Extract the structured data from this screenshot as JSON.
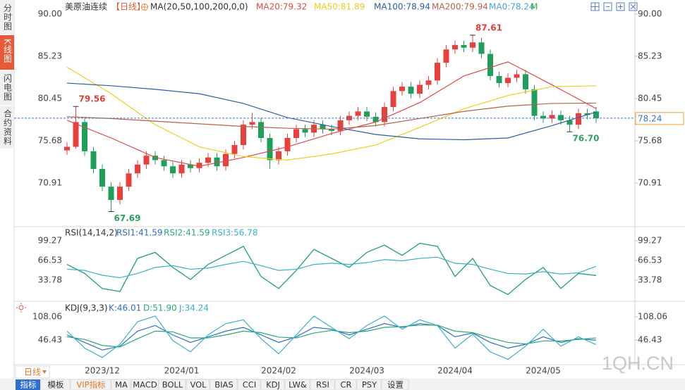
{
  "sidebar_tabs": [
    "分时图",
    "K线图",
    "闪电图",
    "合约资料"
  ],
  "period_button": "日线",
  "watermark": "1QH.CN",
  "toolbar": [
    "指标",
    "模板",
    "VIP指标",
    "MA",
    "MACD",
    "BOLL",
    "VOL",
    "BIAS",
    "CCI",
    "KDJ",
    "LW&",
    "RSI",
    "CR",
    "PSY",
    "设置"
  ],
  "chart_data": [
    {
      "type": "candlestick",
      "title": "美原油连续",
      "period": "【日线】",
      "indicator": "MA(20,50,100,200,0,0)",
      "categories": [
        null,
        null,
        null,
        null,
        "2023/12",
        null,
        null,
        null,
        null,
        null,
        null,
        null,
        null,
        "2024/01",
        null,
        null,
        null,
        null,
        null,
        null,
        null,
        null,
        null,
        null,
        "2024/02",
        null,
        null,
        null,
        null,
        null,
        null,
        null,
        null,
        null,
        "2024/03",
        null,
        null,
        null,
        null,
        null,
        null,
        null,
        null,
        null,
        "2024/04",
        null,
        null,
        null,
        null,
        null,
        null,
        null,
        null,
        null,
        "2024/05",
        null,
        null,
        null,
        null,
        null,
        null
      ],
      "open": [
        74.6,
        75.0,
        77.8,
        74.5,
        72.5,
        70.5,
        69.0,
        70.5,
        72.0,
        73.0,
        74.0,
        73.5,
        72.8,
        72.0,
        73.0,
        72.6,
        73.2,
        73.8,
        72.8,
        74.2,
        75.2,
        77.5,
        77.8,
        76.0,
        73.5,
        74.5,
        76.0,
        77.0,
        76.6,
        77.5,
        77.0,
        76.8,
        78.0,
        78.5,
        79.0,
        78.4,
        77.8,
        79.5,
        81.3,
        81.8,
        81.0,
        82.0,
        82.5,
        84.5,
        86.0,
        86.5,
        86.2,
        86.8,
        85.5,
        83.0,
        82.2,
        82.8,
        83.2,
        81.5,
        78.5,
        78.2,
        78.6,
        78.0,
        77.5,
        78.8,
        79.0
      ],
      "high": [
        75.5,
        79.56,
        78.2,
        75.0,
        73.0,
        71.0,
        71.0,
        72.5,
        73.5,
        74.5,
        74.5,
        74.0,
        73.3,
        73.5,
        73.5,
        73.7,
        74.3,
        74.3,
        74.7,
        75.7,
        78.0,
        78.8,
        78.3,
        76.5,
        75.0,
        76.5,
        77.5,
        77.5,
        78.0,
        78.0,
        77.5,
        78.5,
        79.0,
        79.5,
        79.5,
        78.9,
        80.0,
        81.8,
        82.3,
        82.3,
        82.5,
        83.0,
        85.0,
        86.5,
        87.0,
        87.0,
        87.61,
        87.3,
        86.0,
        83.5,
        83.3,
        83.7,
        83.7,
        82.0,
        79.0,
        79.1,
        79.1,
        78.5,
        79.3,
        79.3,
        79.5
      ],
      "low": [
        74.1,
        74.8,
        74.0,
        72.0,
        70.0,
        67.69,
        68.5,
        70.0,
        71.5,
        72.5,
        73.0,
        72.3,
        71.5,
        71.5,
        72.1,
        72.1,
        72.7,
        72.3,
        72.3,
        73.7,
        74.7,
        77.0,
        75.5,
        72.5,
        73.0,
        74.0,
        75.5,
        76.1,
        76.1,
        76.5,
        76.3,
        76.3,
        77.5,
        78.0,
        77.9,
        77.3,
        77.3,
        79.0,
        80.8,
        80.5,
        80.5,
        81.5,
        82.0,
        84.0,
        85.5,
        85.7,
        85.7,
        85.0,
        82.5,
        81.7,
        81.7,
        82.3,
        81.0,
        78.0,
        77.7,
        77.7,
        77.5,
        76.7,
        77.0,
        78.1,
        77.7
      ],
      "close": [
        75.0,
        77.8,
        74.5,
        72.5,
        70.5,
        69.0,
        70.5,
        72.0,
        73.0,
        74.0,
        73.5,
        72.8,
        72.0,
        73.0,
        72.6,
        73.2,
        73.8,
        72.8,
        74.2,
        75.2,
        77.5,
        77.8,
        76.0,
        73.5,
        74.5,
        76.0,
        77.0,
        76.6,
        77.5,
        77.0,
        76.8,
        78.0,
        78.5,
        79.0,
        78.4,
        77.8,
        79.5,
        81.3,
        81.8,
        81.0,
        82.0,
        82.5,
        84.5,
        86.0,
        86.5,
        86.2,
        86.8,
        85.5,
        83.0,
        82.2,
        82.8,
        83.2,
        81.5,
        78.5,
        78.2,
        78.6,
        78.0,
        77.5,
        78.8,
        78.6,
        78.24
      ],
      "up_color": "#e8403c",
      "down_color": "#1ea05a",
      "ylim": [
        65.98,
        91.19
      ],
      "yticks": [
        {
          "value": 90,
          "label": "90.00"
        },
        85.23,
        80.45,
        75.68,
        70.91
      ],
      "last_price": 78.24,
      "last_color": "#3a74c8",
      "annotations": [
        {
          "text": "79.56",
          "x": 1,
          "y": 79.56,
          "color": "#e0403c"
        },
        {
          "text": "67.69",
          "x": 5,
          "y": 67.69,
          "color": "#2da060"
        },
        {
          "text": "87.61",
          "x": 46,
          "y": 87.61,
          "color": "#e0403c"
        },
        {
          "text": "76.70",
          "x": 57,
          "y": 76.7,
          "color": "#2da060"
        }
      ],
      "series": [
        {
          "name": "MA20",
          "label": "MA20:79.32",
          "color": "#e04848",
          "x": [
            0,
            5,
            10,
            15,
            20,
            25,
            30,
            35,
            40,
            45,
            50,
            55,
            60
          ],
          "values": [
            78.0,
            76.0,
            73.8,
            72.8,
            73.8,
            75.0,
            76.5,
            77.8,
            80.0,
            83.0,
            84.6,
            82.0,
            79.32
          ]
        },
        {
          "name": "MA50",
          "label": "MA50:81.89",
          "color": "#f0cc1e",
          "x": [
            0,
            5,
            10,
            15,
            20,
            25,
            30,
            35,
            40,
            45,
            50,
            55,
            60
          ],
          "values": [
            84.0,
            81.0,
            77.5,
            75.0,
            73.9,
            73.5,
            74.2,
            75.2,
            77.2,
            79.3,
            80.8,
            81.8,
            81.89
          ]
        },
        {
          "name": "MA100",
          "label": "MA100:78.94",
          "color": "#2c5fa8",
          "x": [
            0,
            5,
            10,
            15,
            20,
            25,
            30,
            35,
            40,
            45,
            50,
            55,
            60
          ],
          "values": [
            82.2,
            81.9,
            81.5,
            81.0,
            79.9,
            78.3,
            77.3,
            76.4,
            75.9,
            75.8,
            76.0,
            77.4,
            78.94
          ]
        },
        {
          "name": "MA200",
          "label": "MA200:79.94",
          "color": "#b8604a",
          "x": [
            0,
            5,
            10,
            15,
            20,
            25,
            30,
            35,
            40,
            45,
            50,
            55,
            60
          ],
          "values": [
            78.4,
            78.2,
            77.9,
            77.6,
            77.3,
            77.1,
            77.0,
            77.4,
            78.2,
            79.0,
            79.6,
            79.9,
            79.94
          ]
        }
      ],
      "extra_legend": [
        {
          "label": "MA0:78.24",
          "color": "#4aa3df"
        },
        {
          "label": "M",
          "color": "#33b34a"
        }
      ]
    },
    {
      "type": "line",
      "title": "RSI(14,14,2)",
      "ylim": [
        -1.26,
        119.15
      ],
      "yticks": [
        99.27,
        66.53,
        33.78
      ],
      "series": [
        {
          "name": "RSI1",
          "label": "RSI1:41.59",
          "color": "#2f6fbf",
          "x": [
            0,
            2,
            4,
            6,
            8,
            10,
            12,
            14,
            16,
            18,
            20,
            22,
            24,
            26,
            28,
            30,
            32,
            34,
            36,
            38,
            40,
            42,
            44,
            46,
            48,
            50,
            52,
            54,
            56,
            58,
            60
          ],
          "values": [
            60,
            45,
            20,
            15,
            70,
            80,
            55,
            35,
            60,
            75,
            90,
            40,
            20,
            50,
            85,
            70,
            55,
            80,
            92,
            75,
            95,
            90,
            40,
            70,
            25,
            10,
            35,
            55,
            20,
            45,
            41.59
          ]
        },
        {
          "name": "RSI2",
          "label": "RSI2:41.59",
          "color": "#2aa876",
          "x": [
            0,
            2,
            4,
            6,
            8,
            10,
            12,
            14,
            16,
            18,
            20,
            22,
            24,
            26,
            28,
            30,
            32,
            34,
            36,
            38,
            40,
            42,
            44,
            46,
            48,
            50,
            52,
            54,
            56,
            58,
            60
          ],
          "values": [
            60,
            45,
            20,
            15,
            70,
            80,
            55,
            35,
            60,
            75,
            90,
            40,
            20,
            50,
            85,
            70,
            55,
            80,
            92,
            75,
            95,
            90,
            40,
            70,
            25,
            10,
            35,
            55,
            20,
            45,
            41.59
          ]
        },
        {
          "name": "RSI3",
          "label": "RSI3:56.78",
          "color": "#3bb0c9",
          "x": [
            0,
            2,
            4,
            6,
            8,
            10,
            12,
            14,
            16,
            18,
            20,
            22,
            24,
            26,
            28,
            30,
            32,
            34,
            36,
            38,
            40,
            42,
            44,
            46,
            48,
            50,
            52,
            54,
            56,
            58,
            60
          ],
          "values": [
            52,
            50,
            42,
            38,
            45,
            55,
            58,
            52,
            54,
            60,
            65,
            58,
            50,
            52,
            60,
            62,
            60,
            63,
            68,
            66,
            70,
            72,
            62,
            60,
            52,
            45,
            44,
            48,
            44,
            46,
            56.78
          ]
        }
      ]
    },
    {
      "type": "line",
      "title": "KDJ(9,3,3)",
      "ylim": [
        -18.93,
        141.68
      ],
      "yticks": [
        108.06,
        46.43
      ],
      "series": [
        {
          "name": "K",
          "label": "K:46.01",
          "color": "#2f6fbf",
          "x": [
            0,
            2,
            4,
            6,
            8,
            10,
            12,
            14,
            16,
            18,
            20,
            22,
            24,
            26,
            28,
            30,
            32,
            34,
            36,
            38,
            40,
            42,
            44,
            46,
            48,
            50,
            52,
            54,
            56,
            58,
            60
          ],
          "values": [
            60,
            40,
            20,
            30,
            70,
            85,
            60,
            40,
            55,
            70,
            80,
            60,
            40,
            55,
            80,
            75,
            60,
            75,
            90,
            80,
            90,
            85,
            55,
            65,
            40,
            25,
            35,
            55,
            40,
            50,
            46.01
          ]
        },
        {
          "name": "D",
          "label": "D:51.90",
          "color": "#2aa876",
          "x": [
            0,
            2,
            4,
            6,
            8,
            10,
            12,
            14,
            16,
            18,
            20,
            22,
            24,
            26,
            28,
            30,
            32,
            34,
            36,
            38,
            40,
            42,
            44,
            46,
            48,
            50,
            52,
            54,
            56,
            58,
            60
          ],
          "values": [
            55,
            48,
            32,
            28,
            50,
            70,
            68,
            52,
            52,
            60,
            70,
            66,
            54,
            52,
            65,
            72,
            66,
            70,
            80,
            82,
            86,
            86,
            70,
            66,
            52,
            40,
            36,
            44,
            44,
            48,
            51.9
          ]
        },
        {
          "name": "J",
          "label": "J:34.24",
          "color": "#3bb0c9",
          "x": [
            0,
            2,
            4,
            6,
            8,
            10,
            12,
            14,
            16,
            18,
            20,
            22,
            24,
            26,
            28,
            30,
            32,
            34,
            36,
            38,
            40,
            42,
            44,
            46,
            48,
            50,
            52,
            54,
            56,
            58,
            60
          ],
          "values": [
            70,
            25,
            0,
            35,
            95,
            110,
            45,
            15,
            60,
            90,
            100,
            50,
            10,
            60,
            110,
            80,
            50,
            85,
            110,
            75,
            100,
            85,
            25,
            62,
            15,
            -5,
            30,
            75,
            30,
            55,
            34.24
          ]
        }
      ]
    }
  ]
}
